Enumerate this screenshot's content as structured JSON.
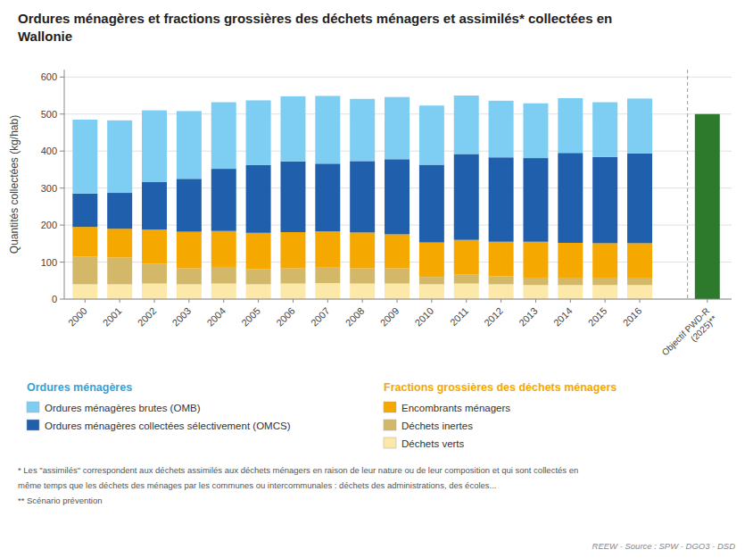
{
  "chart_data": {
    "type": "bar",
    "stacked": true,
    "grid": true,
    "title": "Ordures ménagères et fractions grossières des déchets ménagers et assimilés* collectées en\nWallonie",
    "ylabel": "Quantités collectées (kg/hab)",
    "ylim": [
      0,
      620
    ],
    "yticks": [
      0,
      100,
      200,
      300,
      400,
      500,
      600
    ],
    "categories": [
      "2000",
      "2001",
      "2002",
      "2003",
      "2004",
      "2005",
      "2006",
      "2007",
      "2008",
      "2009",
      "2010",
      "2011",
      "2012",
      "2013",
      "2014",
      "2015",
      "2016"
    ],
    "series": [
      {
        "name": "Déchets verts",
        "color": "#fce8a8",
        "group": "Fractions grossières des déchets ménagers",
        "values": [
          40,
          40,
          42,
          40,
          42,
          40,
          42,
          43,
          42,
          42,
          40,
          42,
          40,
          38,
          38,
          38,
          38
        ]
      },
      {
        "name": "Déchets inertes",
        "color": "#d4b86a",
        "group": "Fractions grossières des déchets ménagers",
        "values": [
          75,
          72,
          53,
          43,
          45,
          41,
          41,
          42,
          41,
          41,
          20,
          25,
          22,
          20,
          20,
          20,
          20
        ]
      },
      {
        "name": "Encombrants ménagers",
        "color": "#f5a800",
        "group": "Fractions grossières des déchets ménagers",
        "values": [
          80,
          78,
          93,
          99,
          97,
          98,
          98,
          98,
          97,
          92,
          93,
          93,
          93,
          97,
          94,
          93,
          93
        ]
      },
      {
        "name": "Ordures ménagères collectées sélectivement (OMCS)",
        "color": "#1f5fac",
        "group": "Ordures ménagères",
        "values": [
          90,
          97,
          129,
          143,
          168,
          183,
          191,
          183,
          193,
          203,
          210,
          232,
          228,
          226,
          243,
          233,
          243
        ]
      },
      {
        "name": "Ordures ménagères brutes (OMB)",
        "color": "#7ecef4",
        "group": "Ordures ménagères",
        "values": [
          200,
          196,
          193,
          183,
          180,
          175,
          176,
          183,
          168,
          168,
          160,
          158,
          153,
          148,
          148,
          148,
          148
        ]
      }
    ],
    "target": {
      "label": "Objectif PWD-R\n(2025)**",
      "value": 500,
      "color": "#2d7a2d"
    },
    "legend_groups": [
      {
        "title": "Ordures ménagères",
        "color": "#3a9fd4"
      },
      {
        "title": "Fractions grossières des déchets ménagers",
        "color": "#f5a800"
      }
    ],
    "footnotes": [
      "* Les \"assimilés\" correspondent aux déchets assimilés aux déchets ménagers en raison de leur nature ou de leur composition et qui sont collectés en",
      "même temps que les déchets des ménages par les communes ou intercommunales : déchets des administrations, des écoles...",
      "** Scénario prévention"
    ],
    "source": "REEW - Source : SPW - DGO3 - DSD"
  }
}
